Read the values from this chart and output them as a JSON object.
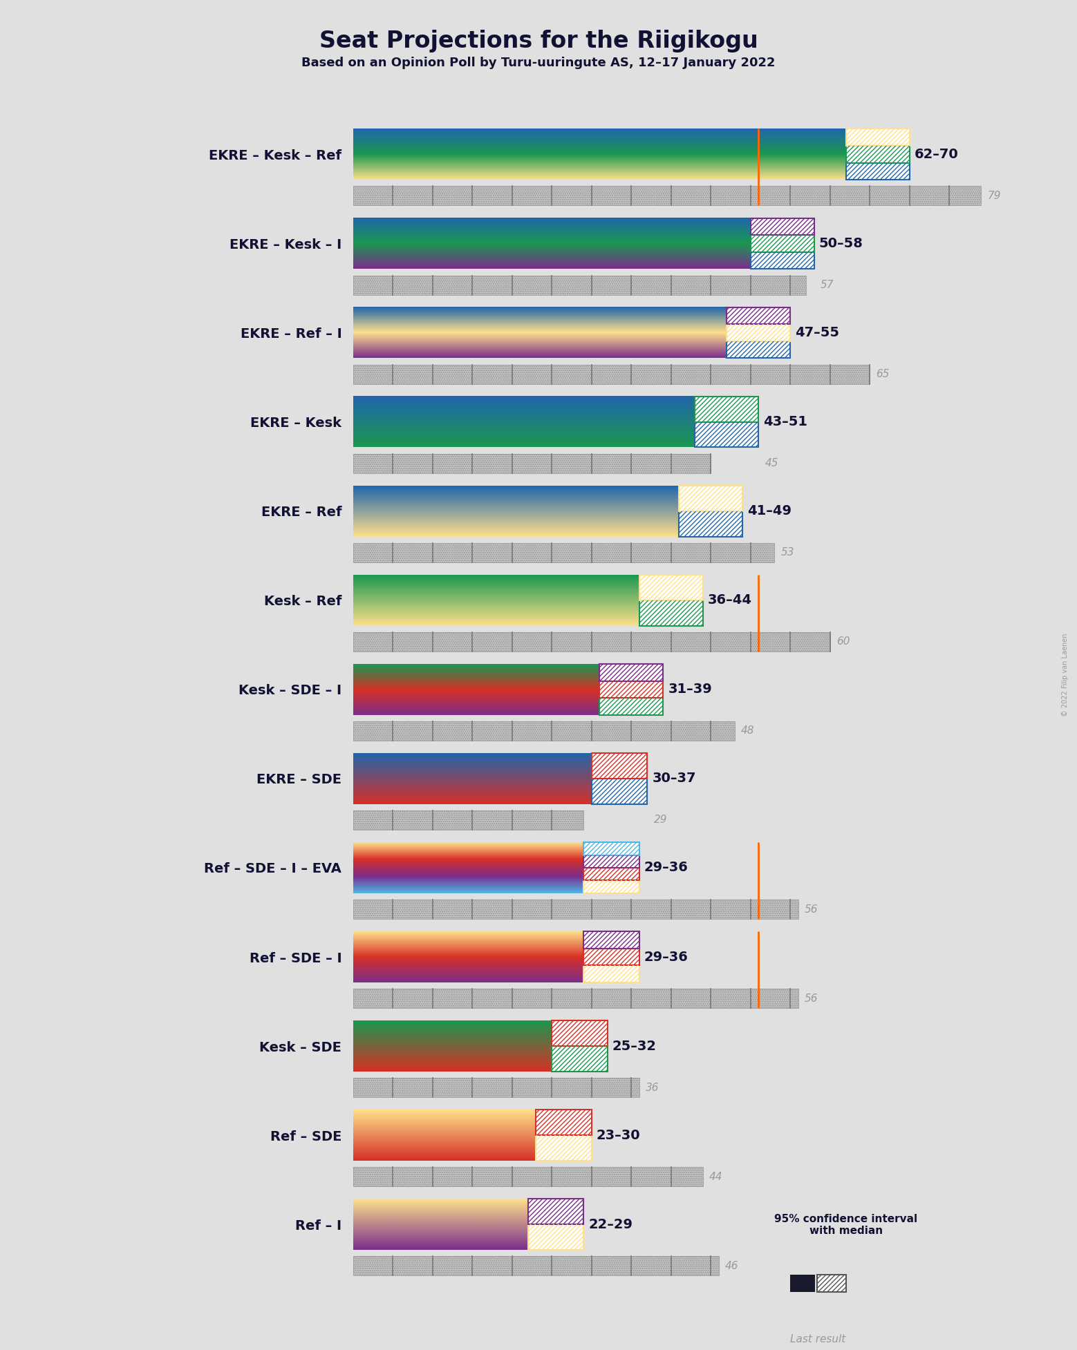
{
  "title": "Seat Projections for the Riigikogu",
  "subtitle": "Based on an Opinion Poll by Turu-uuringute AS, 12–17 January 2022",
  "copyright": "© 2022 Filip van Laenen",
  "coalitions": [
    {
      "name": "EKRE – Kesk – Ref",
      "underline": false,
      "ci_low": 62,
      "ci_high": 70,
      "median": 66,
      "last": 79,
      "colors": [
        "#2166ac",
        "#1a9850",
        "#fee08b"
      ],
      "hatch_colors": [
        "#2166ac",
        "#1a9850",
        "#fee08b"
      ],
      "has_orange_line": true
    },
    {
      "name": "EKRE – Kesk – I",
      "underline": true,
      "ci_low": 50,
      "ci_high": 58,
      "median": 54,
      "last": 57,
      "colors": [
        "#2166ac",
        "#1a9850",
        "#7b2d8b"
      ],
      "hatch_colors": [
        "#2166ac",
        "#1a9850",
        "#7b2d8b"
      ],
      "has_orange_line": false
    },
    {
      "name": "EKRE – Ref – I",
      "underline": false,
      "ci_low": 47,
      "ci_high": 55,
      "median": 51,
      "last": 65,
      "colors": [
        "#2166ac",
        "#fee08b",
        "#7b2d8b"
      ],
      "hatch_colors": [
        "#2166ac",
        "#fee08b",
        "#7b2d8b"
      ],
      "has_orange_line": false
    },
    {
      "name": "EKRE – Kesk",
      "underline": false,
      "ci_low": 43,
      "ci_high": 51,
      "median": 47,
      "last": 45,
      "colors": [
        "#2166ac",
        "#1a9850"
      ],
      "hatch_colors": [
        "#2166ac",
        "#1a9850"
      ],
      "has_orange_line": false
    },
    {
      "name": "EKRE – Ref",
      "underline": false,
      "ci_low": 41,
      "ci_high": 49,
      "median": 45,
      "last": 53,
      "colors": [
        "#2166ac",
        "#fee08b"
      ],
      "hatch_colors": [
        "#2166ac",
        "#fee08b"
      ],
      "has_orange_line": false
    },
    {
      "name": "Kesk – Ref",
      "underline": false,
      "ci_low": 36,
      "ci_high": 44,
      "median": 40,
      "last": 60,
      "colors": [
        "#1a9850",
        "#fee08b"
      ],
      "hatch_colors": [
        "#1a9850",
        "#fee08b"
      ],
      "has_orange_line": true
    },
    {
      "name": "Kesk – SDE – I",
      "underline": false,
      "ci_low": 31,
      "ci_high": 39,
      "median": 35,
      "last": 48,
      "colors": [
        "#1a9850",
        "#d73027",
        "#7b2d8b"
      ],
      "hatch_colors": [
        "#1a9850",
        "#d73027",
        "#7b2d8b"
      ],
      "has_orange_line": false
    },
    {
      "name": "EKRE – SDE",
      "underline": false,
      "ci_low": 30,
      "ci_high": 37,
      "median": 33,
      "last": 29,
      "colors": [
        "#2166ac",
        "#d73027"
      ],
      "hatch_colors": [
        "#2166ac",
        "#d73027"
      ],
      "has_orange_line": false
    },
    {
      "name": "Ref – SDE – I – EVA",
      "underline": false,
      "ci_low": 29,
      "ci_high": 36,
      "median": 32,
      "last": 56,
      "colors": [
        "#fee08b",
        "#d73027",
        "#7b2d8b",
        "#4db8e8"
      ],
      "hatch_colors": [
        "#fee08b",
        "#d73027",
        "#7b2d8b",
        "#4db8e8"
      ],
      "has_orange_line": true
    },
    {
      "name": "Ref – SDE – I",
      "underline": false,
      "ci_low": 29,
      "ci_high": 36,
      "median": 32,
      "last": 56,
      "colors": [
        "#fee08b",
        "#d73027",
        "#7b2d8b"
      ],
      "hatch_colors": [
        "#fee08b",
        "#d73027",
        "#7b2d8b"
      ],
      "has_orange_line": true
    },
    {
      "name": "Kesk – SDE",
      "underline": false,
      "ci_low": 25,
      "ci_high": 32,
      "median": 28,
      "last": 36,
      "colors": [
        "#1a9850",
        "#d73027"
      ],
      "hatch_colors": [
        "#1a9850",
        "#d73027"
      ],
      "has_orange_line": false
    },
    {
      "name": "Ref – SDE",
      "underline": false,
      "ci_low": 23,
      "ci_high": 30,
      "median": 26,
      "last": 44,
      "colors": [
        "#fee08b",
        "#d73027"
      ],
      "hatch_colors": [
        "#fee08b",
        "#d73027"
      ],
      "has_orange_line": false
    },
    {
      "name": "Ref – I",
      "underline": false,
      "ci_low": 22,
      "ci_high": 29,
      "median": 25,
      "last": 46,
      "colors": [
        "#fee08b",
        "#7b2d8b"
      ],
      "hatch_colors": [
        "#fee08b",
        "#7b2d8b"
      ],
      "has_orange_line": false
    }
  ],
  "x_max": 83,
  "majority_line": 51,
  "bg_color": "#E0E0E0"
}
